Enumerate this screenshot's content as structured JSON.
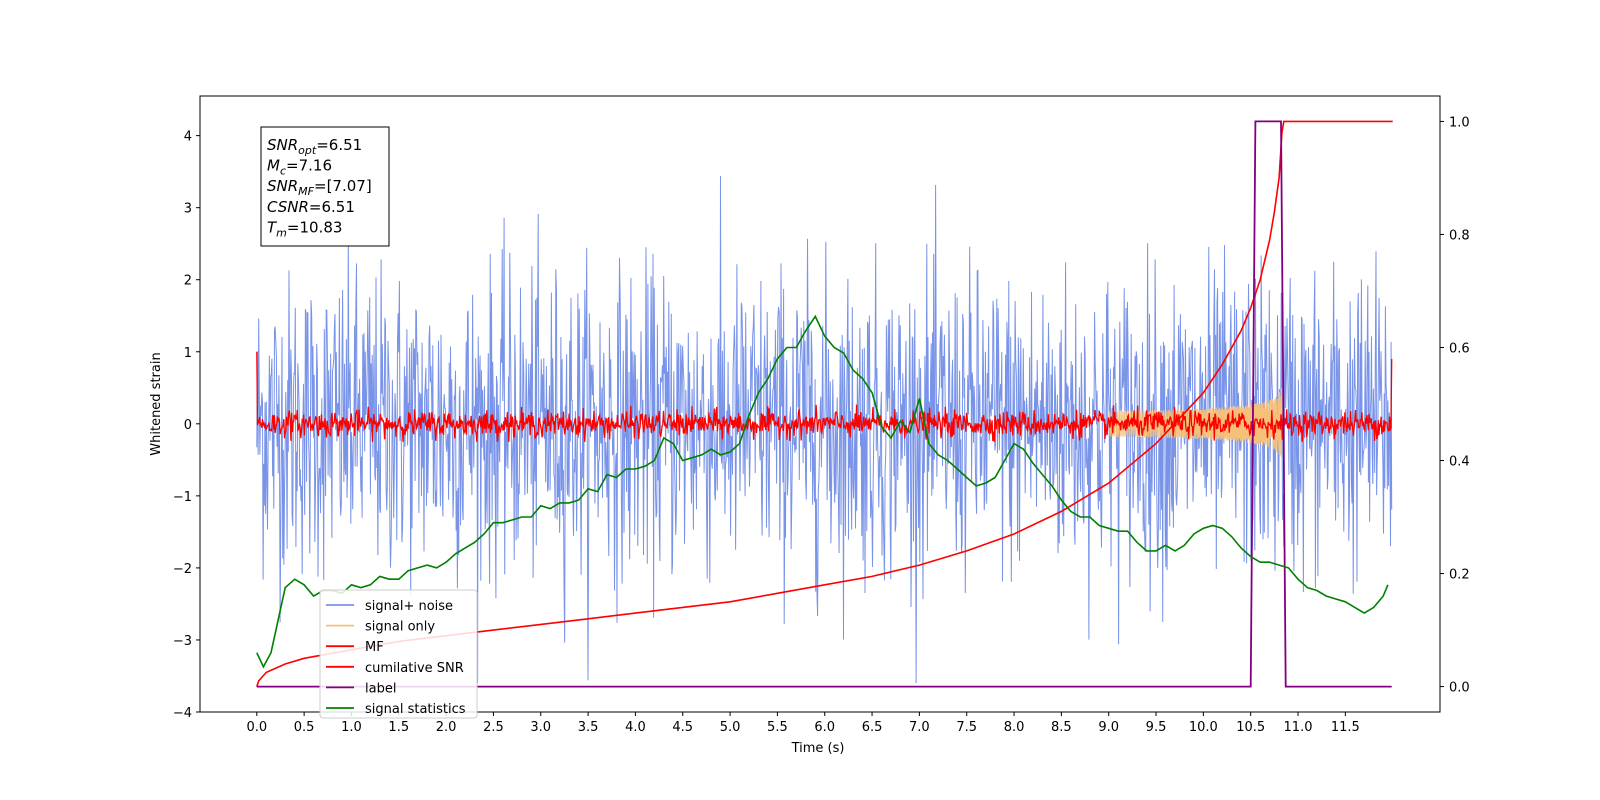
{
  "chart_data": {
    "type": "line",
    "xlabel": "Time (s)",
    "ylabel": "Whitened strain",
    "xlim": [
      -0.6,
      12.5
    ],
    "ylim": [
      -4,
      4.55
    ],
    "y2lim": [
      -0.045,
      1.045
    ],
    "x_ticks": [
      "0.0",
      "0.5",
      "1.0",
      "1.5",
      "2.0",
      "2.5",
      "3.0",
      "3.5",
      "4.0",
      "4.5",
      "5.0",
      "5.5",
      "6.0",
      "6.5",
      "7.0",
      "7.5",
      "8.0",
      "8.5",
      "9.0",
      "9.5",
      "10.0",
      "10.5",
      "11.0",
      "11.5"
    ],
    "y_ticks": [
      "−4",
      "−3",
      "−2",
      "−1",
      "0",
      "1",
      "2",
      "3",
      "4"
    ],
    "y2_ticks": [
      "0.0",
      "0.2",
      "0.4",
      "0.6",
      "0.8",
      "1.0"
    ],
    "colors": {
      "noise": "#7893e8",
      "signal": "#f5c07a",
      "mf": "#ff0000",
      "csnr": "#ff0000",
      "label": "#800080",
      "stats": "#008000"
    },
    "legend_position": "lower-left",
    "legend": [
      {
        "label": "signal+ noise",
        "color": "#7893e8"
      },
      {
        "label": "signal only",
        "color": "#f5c07a"
      },
      {
        "label": "MF",
        "color": "#ff0000"
      },
      {
        "label": "cumilative SNR",
        "color": "#ff0000"
      },
      {
        "label": "label",
        "color": "#800080"
      },
      {
        "label": "signal statistics",
        "color": "#008000"
      }
    ],
    "annotation": {
      "lines": [
        {
          "main": "SNR",
          "sub": "opt",
          "rest": "=6.51"
        },
        {
          "main": "M",
          "sub": "c",
          "rest": "=7.16"
        },
        {
          "main": "SNR",
          "sub": "MF",
          "rest": "=[7.07]"
        },
        {
          "main": "CSNR",
          "sub": "",
          "rest": "=6.51"
        },
        {
          "main": "T",
          "sub": "m",
          "rest": "=10.83"
        }
      ]
    },
    "series": [
      {
        "name": "signal+ noise",
        "axis": "left",
        "noise": {
          "x_start": 0.0,
          "x_end": 11.99,
          "std": 1.0,
          "dense_band": [
            -1.3,
            1.3
          ],
          "peaks_max": [
            3.8,
            4.18
          ],
          "peaks_min": [
            -3.6,
            -3.4
          ]
        }
      },
      {
        "name": "MF",
        "axis": "left",
        "noise": {
          "x_start": 0.0,
          "x_end": 11.99,
          "band": [
            -0.2,
            0.2
          ],
          "spikes": [
            -0.25,
            0.42
          ],
          "start_value": 1.0,
          "end_value": 0.9
        }
      },
      {
        "name": "signal only",
        "axis": "left",
        "chirp": {
          "x_start": 9.0,
          "x_end": 10.83,
          "amp_end": 0.55
        }
      },
      {
        "name": "cumilative SNR",
        "axis": "right",
        "x": [
          0.0,
          0.02,
          0.1,
          0.3,
          0.5,
          1.0,
          1.5,
          2.0,
          2.5,
          3.0,
          3.5,
          4.0,
          4.5,
          5.0,
          5.5,
          6.0,
          6.5,
          7.0,
          7.5,
          8.0,
          8.5,
          9.0,
          9.5,
          10.0,
          10.2,
          10.4,
          10.5,
          10.6,
          10.7,
          10.75,
          10.8,
          10.83,
          10.85,
          12.0
        ],
        "y": [
          0.0,
          0.01,
          0.025,
          0.04,
          0.05,
          0.065,
          0.08,
          0.09,
          0.1,
          0.11,
          0.12,
          0.13,
          0.14,
          0.15,
          0.165,
          0.18,
          0.195,
          0.215,
          0.24,
          0.27,
          0.31,
          0.36,
          0.43,
          0.52,
          0.57,
          0.63,
          0.67,
          0.72,
          0.79,
          0.84,
          0.9,
          0.98,
          1.0,
          1.0
        ]
      },
      {
        "name": "label",
        "axis": "right",
        "x": [
          0.0,
          10.5,
          10.55,
          10.82,
          10.87,
          11.99
        ],
        "y": [
          0.0,
          0.0,
          1.0,
          1.0,
          0.0,
          0.0
        ]
      },
      {
        "name": "signal statistics",
        "axis": "right",
        "x": [
          0.0,
          0.07,
          0.15,
          0.3,
          0.4,
          0.5,
          0.6,
          0.7,
          0.8,
          0.9,
          1.0,
          1.1,
          1.2,
          1.3,
          1.4,
          1.5,
          1.6,
          1.7,
          1.8,
          1.9,
          2.0,
          2.1,
          2.2,
          2.3,
          2.4,
          2.5,
          2.6,
          2.7,
          2.8,
          2.9,
          3.0,
          3.1,
          3.2,
          3.3,
          3.4,
          3.5,
          3.6,
          3.7,
          3.8,
          3.9,
          4.0,
          4.1,
          4.2,
          4.3,
          4.4,
          4.5,
          4.6,
          4.7,
          4.8,
          4.9,
          5.0,
          5.1,
          5.2,
          5.3,
          5.4,
          5.5,
          5.6,
          5.7,
          5.8,
          5.9,
          6.0,
          6.1,
          6.2,
          6.3,
          6.4,
          6.5,
          6.6,
          6.7,
          6.8,
          6.9,
          7.0,
          7.1,
          7.2,
          7.3,
          7.4,
          7.5,
          7.6,
          7.7,
          7.8,
          7.9,
          8.0,
          8.1,
          8.2,
          8.3,
          8.4,
          8.5,
          8.6,
          8.7,
          8.8,
          8.9,
          9.0,
          9.1,
          9.2,
          9.3,
          9.4,
          9.5,
          9.6,
          9.7,
          9.8,
          9.9,
          10.0,
          10.1,
          10.2,
          10.3,
          10.4,
          10.5,
          10.6,
          10.7,
          10.8,
          10.9,
          11.0,
          11.1,
          11.2,
          11.3,
          11.4,
          11.5,
          11.6,
          11.7,
          11.8,
          11.9,
          11.95
        ],
        "y": [
          0.06,
          0.035,
          0.06,
          0.175,
          0.19,
          0.18,
          0.16,
          0.17,
          0.17,
          0.165,
          0.18,
          0.175,
          0.18,
          0.195,
          0.19,
          0.19,
          0.205,
          0.21,
          0.215,
          0.21,
          0.22,
          0.235,
          0.245,
          0.255,
          0.27,
          0.29,
          0.29,
          0.295,
          0.3,
          0.3,
          0.32,
          0.315,
          0.325,
          0.325,
          0.33,
          0.35,
          0.345,
          0.375,
          0.37,
          0.385,
          0.385,
          0.39,
          0.4,
          0.44,
          0.43,
          0.4,
          0.405,
          0.41,
          0.42,
          0.41,
          0.415,
          0.43,
          0.48,
          0.52,
          0.545,
          0.58,
          0.6,
          0.6,
          0.63,
          0.655,
          0.62,
          0.6,
          0.59,
          0.56,
          0.545,
          0.52,
          0.46,
          0.44,
          0.47,
          0.45,
          0.51,
          0.43,
          0.41,
          0.4,
          0.385,
          0.37,
          0.355,
          0.36,
          0.37,
          0.4,
          0.43,
          0.42,
          0.395,
          0.375,
          0.355,
          0.33,
          0.31,
          0.3,
          0.3,
          0.285,
          0.28,
          0.275,
          0.275,
          0.255,
          0.24,
          0.24,
          0.25,
          0.24,
          0.25,
          0.27,
          0.28,
          0.285,
          0.28,
          0.265,
          0.245,
          0.23,
          0.22,
          0.22,
          0.215,
          0.21,
          0.19,
          0.175,
          0.17,
          0.16,
          0.155,
          0.15,
          0.14,
          0.13,
          0.14,
          0.16,
          0.18
        ]
      }
    ]
  }
}
